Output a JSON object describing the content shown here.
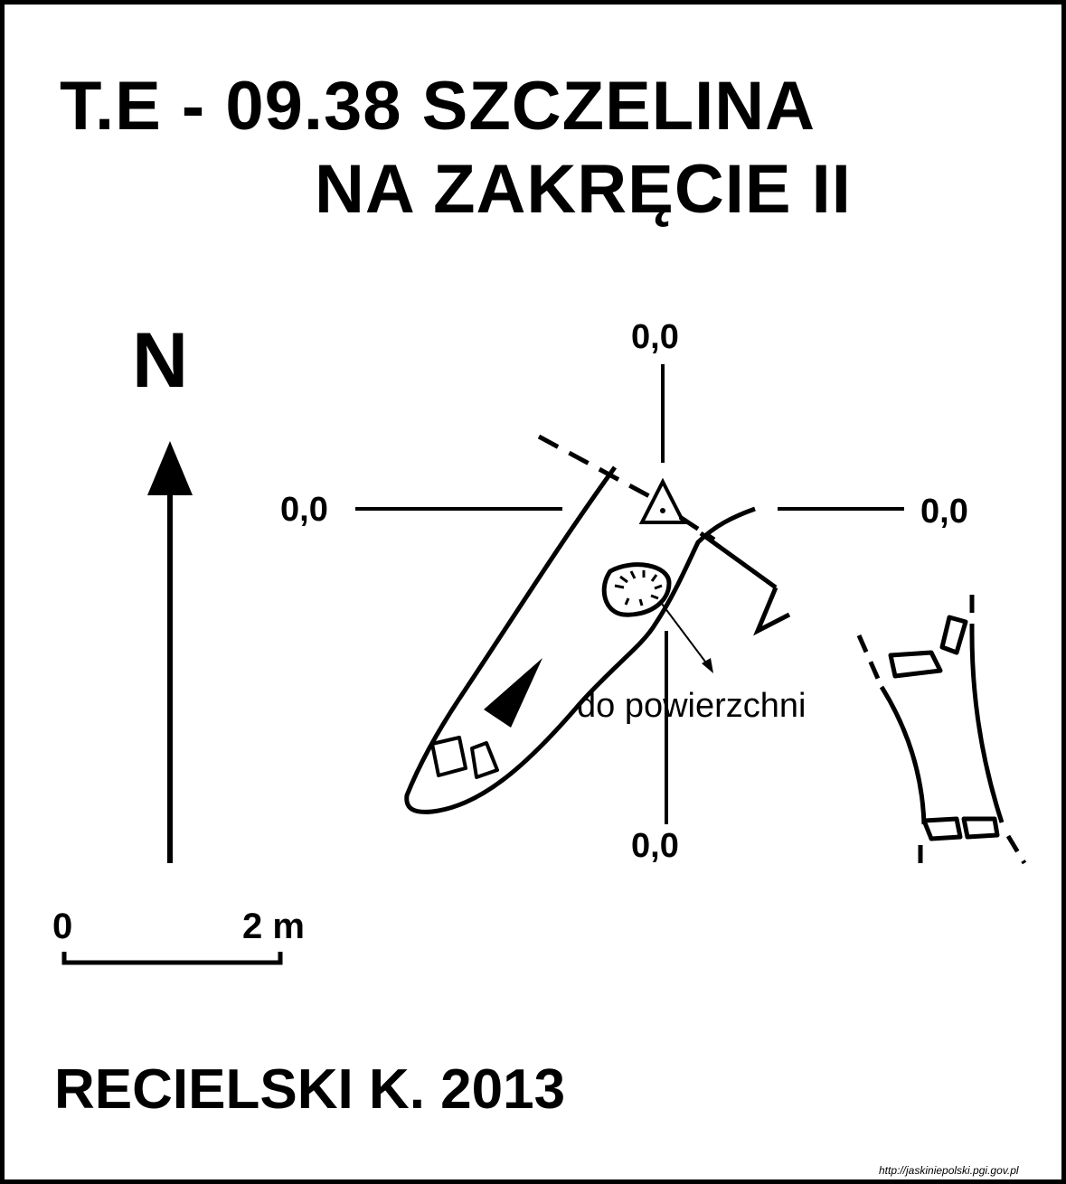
{
  "title": {
    "line1": "T.E - 09.38  SZCZELINA",
    "line2": "NA ZAKRĘCIE II"
  },
  "north_label": "N",
  "coords": {
    "top": "0,0",
    "left": "0,0",
    "right": "0,0",
    "bottom": "0,0"
  },
  "scale": {
    "start": "0",
    "end": "2 m"
  },
  "annotation": "do powierzchni",
  "author": "RECIELSKI K. 2013",
  "source_url": "http://jaskiniepolski.pgi.gov.pl",
  "colors": {
    "ink": "#000000",
    "paper": "#ffffff"
  }
}
